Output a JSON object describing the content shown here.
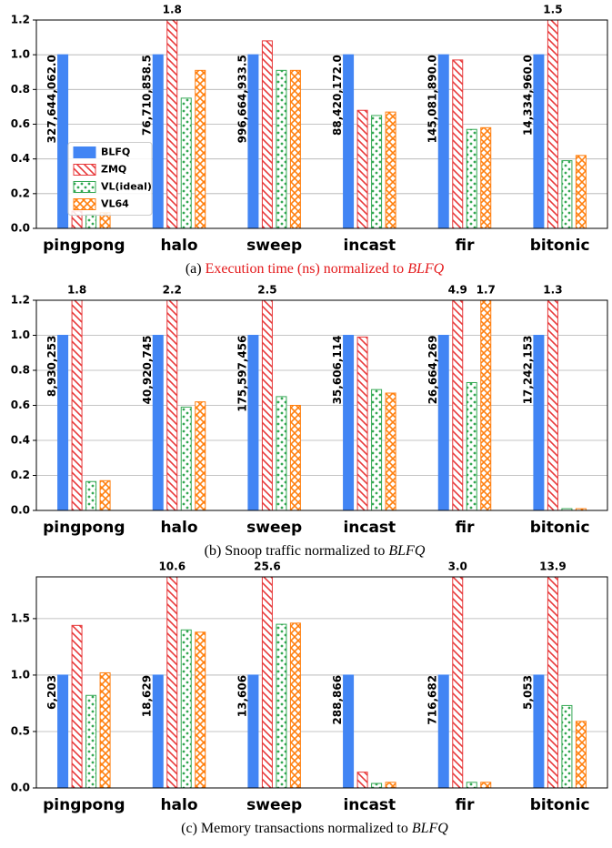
{
  "chart_data": [
    {
      "type": "bar",
      "caption": [
        "(a)",
        "Execution time (ns) normalized to",
        "BLFQ"
      ],
      "caption_color": "#e41a1c",
      "categories": [
        "pingpong",
        "halo",
        "sweep",
        "incast",
        "fir",
        "bitonic"
      ],
      "series": [
        {
          "name": "BLFQ",
          "color": "#4285f4",
          "hatch": "solid",
          "values": [
            1.0,
            1.0,
            1.0,
            1.0,
            1.0,
            1.0
          ]
        },
        {
          "name": "ZMQ",
          "color": "#e8393a",
          "hatch": "diagonal",
          "values": [
            0.1,
            1.8,
            1.08,
            0.68,
            0.97,
            1.5
          ],
          "value_labels": [
            null,
            "1.8",
            null,
            null,
            null,
            "1.5"
          ]
        },
        {
          "name": "VL(ideal)",
          "color": "#34a853",
          "hatch": "dots",
          "values": [
            0.08,
            0.75,
            0.91,
            0.65,
            0.57,
            0.39
          ]
        },
        {
          "name": "VL64",
          "color": "#ff7f0e",
          "hatch": "cross",
          "values": [
            0.09,
            0.91,
            0.91,
            0.67,
            0.58,
            0.42
          ]
        }
      ],
      "annotations": [
        "327,644,062.0",
        "76,710,858.5",
        "996,664,933.5",
        "88,420,172.0",
        "145,081,890.0",
        "14,334,960.0"
      ],
      "ylim": [
        0,
        1.2
      ],
      "yticks": [
        {
          "value": 0,
          "label": "0.0"
        },
        0.2,
        0.4,
        0.6,
        0.8,
        {
          "value": 1,
          "label": "1.0"
        },
        1.2
      ],
      "grid": true,
      "legend": true,
      "legend_loc": "center left"
    },
    {
      "type": "bar",
      "caption": [
        "(b)",
        "Snoop traffic normalized to",
        "BLFQ"
      ],
      "caption_color": "#000000",
      "categories": [
        "pingpong",
        "halo",
        "sweep",
        "incast",
        "fir",
        "bitonic"
      ],
      "series": [
        {
          "name": "BLFQ",
          "color": "#4285f4",
          "hatch": "solid",
          "values": [
            1.0,
            1.0,
            1.0,
            1.0,
            1.0,
            1.0
          ]
        },
        {
          "name": "ZMQ",
          "color": "#e8393a",
          "hatch": "diagonal",
          "values": [
            1.8,
            2.2,
            2.5,
            0.99,
            4.9,
            1.3
          ],
          "value_labels": [
            "1.8",
            "2.2",
            "2.5",
            null,
            "4.9",
            "1.3"
          ]
        },
        {
          "name": "VL(ideal)",
          "color": "#34a853",
          "hatch": "dots",
          "values": [
            0.165,
            0.59,
            0.65,
            0.69,
            0.73,
            0.01
          ]
        },
        {
          "name": "VL64",
          "color": "#ff7f0e",
          "hatch": "cross",
          "values": [
            0.17,
            0.62,
            0.6,
            0.67,
            1.7,
            0.01
          ],
          "value_labels": [
            null,
            null,
            null,
            null,
            "1.7",
            null
          ]
        }
      ],
      "annotations": [
        "8,930,253",
        "40,920,745",
        "175,597,456",
        "35,606,114",
        "26,664,269",
        "17,242,153"
      ],
      "ylim": [
        0,
        1.2
      ],
      "yticks": [
        {
          "value": 0,
          "label": "0.0"
        },
        0.2,
        0.4,
        0.6,
        0.8,
        {
          "value": 1,
          "label": "1.0"
        },
        1.2
      ],
      "grid": true,
      "legend": false
    },
    {
      "type": "bar",
      "caption": [
        "(c)",
        "Memory transactions normalized to",
        "BLFQ"
      ],
      "caption_color": "#000000",
      "categories": [
        "pingpong",
        "halo",
        "sweep",
        "incast",
        "fir",
        "bitonic"
      ],
      "series": [
        {
          "name": "BLFQ",
          "color": "#4285f4",
          "hatch": "solid",
          "values": [
            1.0,
            1.0,
            1.0,
            1.0,
            1.0,
            1.0
          ]
        },
        {
          "name": "ZMQ",
          "color": "#e8393a",
          "hatch": "diagonal",
          "values": [
            1.44,
            10.6,
            25.6,
            0.14,
            3.0,
            13.9
          ],
          "value_labels": [
            null,
            "10.6",
            "25.6",
            null,
            "3.0",
            "13.9"
          ]
        },
        {
          "name": "VL(ideal)",
          "color": "#34a853",
          "hatch": "dots",
          "values": [
            0.82,
            1.4,
            1.45,
            0.04,
            0.05,
            0.73
          ]
        },
        {
          "name": "VL64",
          "color": "#ff7f0e",
          "hatch": "cross",
          "values": [
            1.02,
            1.38,
            1.46,
            0.05,
            0.05,
            0.59
          ]
        }
      ],
      "annotations": [
        "6,203",
        "18,629",
        "13,606",
        "288,866",
        "716,682",
        "5,053"
      ],
      "ylim": [
        0,
        1.87
      ],
      "yticks": [
        {
          "value": 0,
          "label": "0.0"
        },
        0.5,
        {
          "value": 1,
          "label": "1.0"
        },
        1.5
      ],
      "grid": true,
      "legend": false
    }
  ]
}
